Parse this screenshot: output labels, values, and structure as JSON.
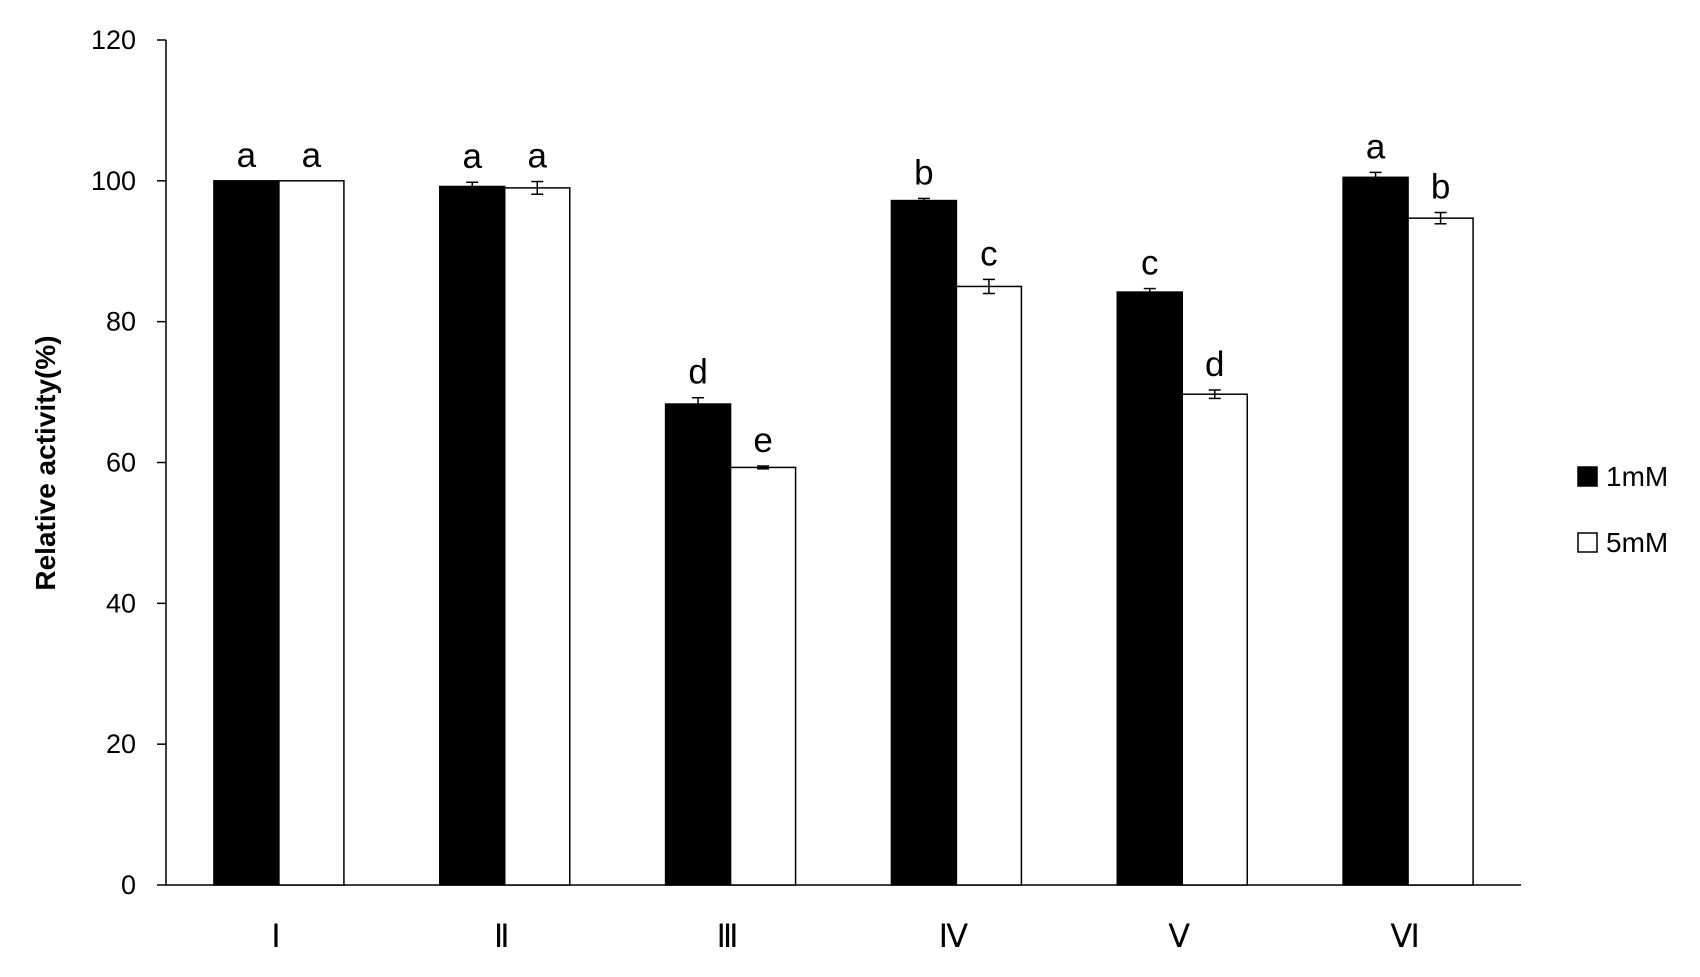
{
  "chart_data": {
    "type": "bar",
    "title": "",
    "xlabel": "",
    "ylabel": "Relative activity(%)",
    "ylim": [
      0,
      120
    ],
    "yticks": [
      0,
      20,
      40,
      60,
      80,
      100,
      120
    ],
    "grid": false,
    "legend_position": "right",
    "categories": [
      "Ⅰ",
      "Ⅱ",
      "Ⅲ",
      "Ⅳ",
      "Ⅴ",
      "Ⅵ"
    ],
    "series": [
      {
        "name": "1mM",
        "color": "#000000",
        "values": [
          100,
          99.2,
          68.3,
          97.2,
          84.2,
          100.5
        ],
        "errors": [
          0,
          0.6,
          0.9,
          0.3,
          0.5,
          0.7
        ],
        "labels": [
          "a",
          "a",
          "d",
          "b",
          "c",
          "a"
        ]
      },
      {
        "name": "5mM",
        "color": "#ffffff",
        "values": [
          100,
          99.0,
          59.3,
          85.0,
          69.7,
          94.7
        ],
        "errors": [
          0,
          0.9,
          0.2,
          1.0,
          0.6,
          0.8
        ],
        "labels": [
          "a",
          "a",
          "e",
          "c",
          "d",
          "b"
        ]
      }
    ]
  }
}
